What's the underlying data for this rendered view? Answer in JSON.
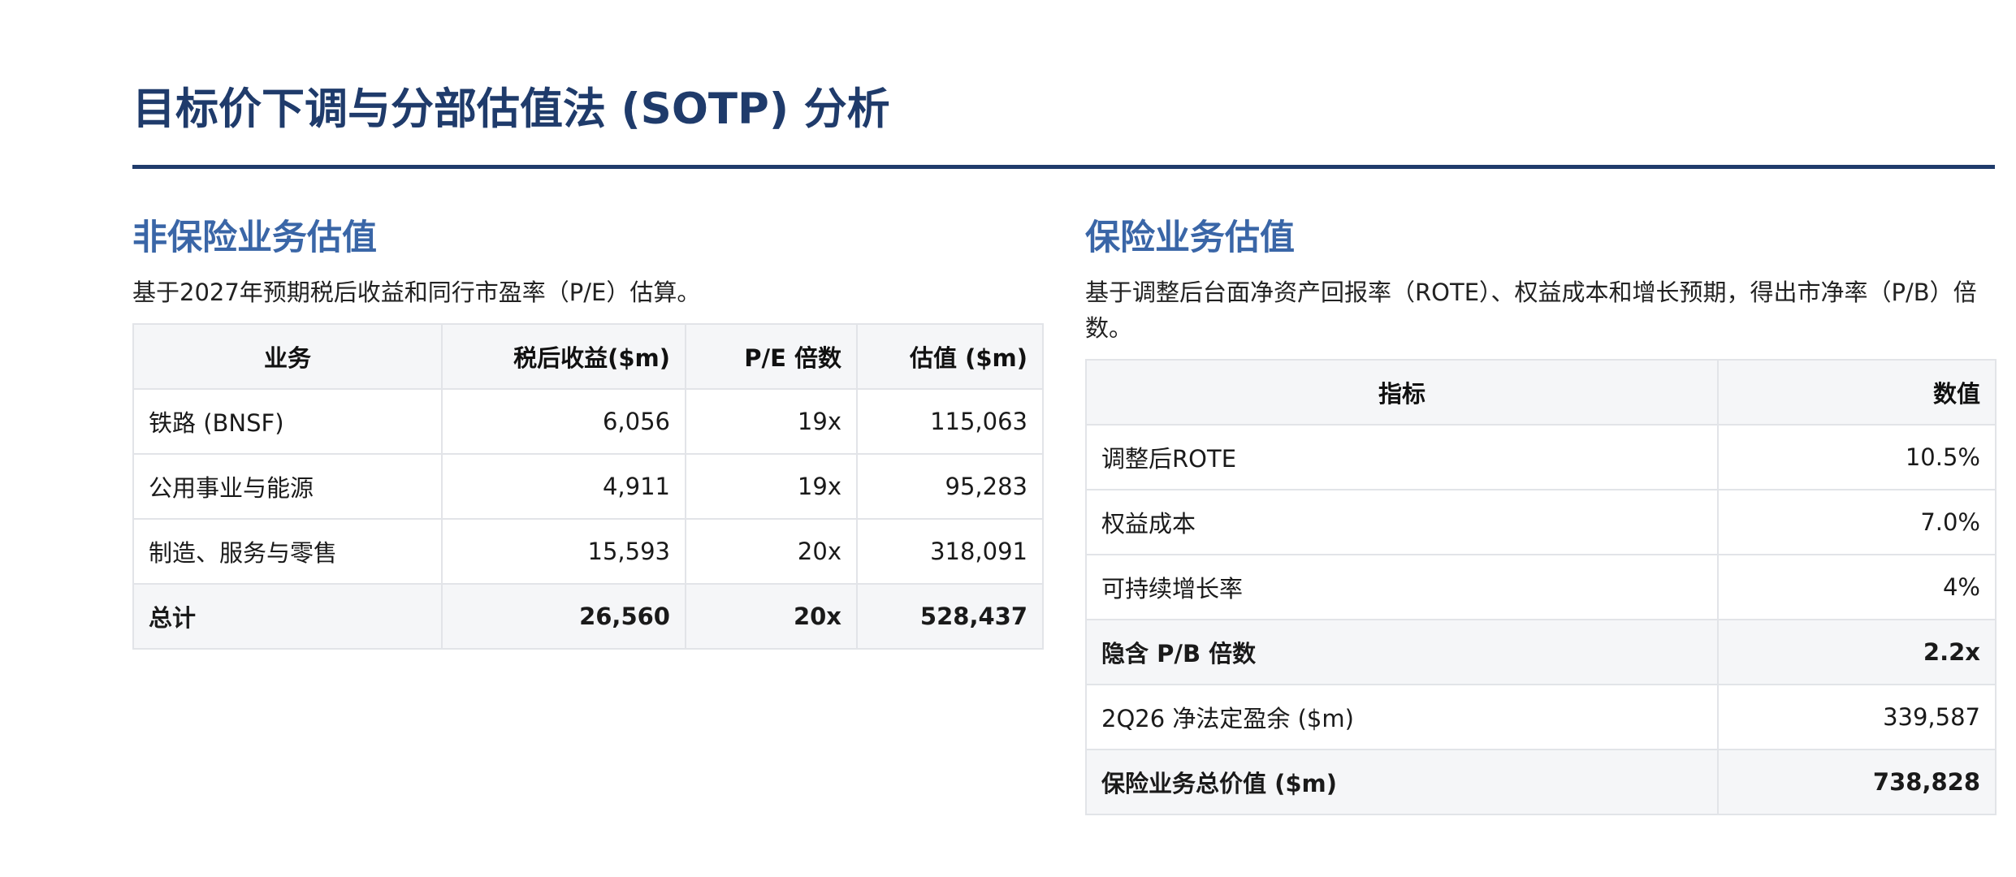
{
  "page": {
    "title": "目标价下调与分部估值法 (SOTP) 分析"
  },
  "non_insurance": {
    "title": "非保险业务估值",
    "description": "基于2027年预期税后收益和同行市盈率（P/E）估算。",
    "headers": [
      "业务",
      "税后收益($m)",
      "P/E 倍数",
      "估值 ($m)"
    ],
    "rows": [
      [
        "铁路 (BNSF)",
        "6,056",
        "19x",
        "115,063"
      ],
      [
        "公用事业与能源",
        "4,911",
        "19x",
        "95,283"
      ],
      [
        "制造、服务与零售",
        "15,593",
        "20x",
        "318,091"
      ]
    ],
    "total": [
      "总计",
      "26,560",
      "20x",
      "528,437"
    ]
  },
  "insurance": {
    "title": "保险业务估值",
    "description": "基于调整后台面净资产回报率（ROTE）、权益成本和增长预期，得出市净率（P/B）倍数。",
    "headers": [
      "指标",
      "数值"
    ],
    "rows": [
      [
        "调整后ROTE",
        "10.5%"
      ],
      [
        "权益成本",
        "7.0%"
      ],
      [
        "可持续增长率",
        "4%"
      ],
      [
        "隐含 P/B 倍数",
        "2.2x"
      ],
      [
        "2Q26 净法定盈余 ($m)",
        "339,587"
      ],
      [
        "保险业务总价值 ($m)",
        "738,828"
      ]
    ]
  },
  "colors": {
    "title": "#1f3b6b",
    "section_title": "#3a66a7",
    "header_bg": "#f5f6f8",
    "border": "#e2e4e8"
  }
}
